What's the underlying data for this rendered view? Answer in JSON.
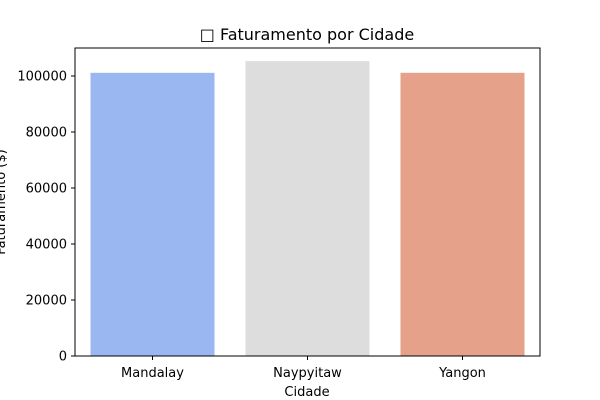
{
  "chart_data": {
    "type": "bar",
    "title": "□ Faturamento por Cidade",
    "xlabel": "Cidade",
    "ylabel": "Faturamento ($)",
    "categories": [
      "Mandalay",
      "Naypyitaw",
      "Yangon"
    ],
    "values": [
      101140.5,
      105303.5,
      101143.2
    ],
    "colors": [
      "#9ab7f2",
      "#dddddd",
      "#e6a18a"
    ],
    "ylim": [
      0,
      110000
    ],
    "yticks": [
      0,
      20000,
      40000,
      60000,
      80000,
      100000
    ],
    "ytick_labels": [
      "0",
      "20000",
      "40000",
      "60000",
      "80000",
      "100000"
    ],
    "grid": false,
    "legend": "none"
  }
}
